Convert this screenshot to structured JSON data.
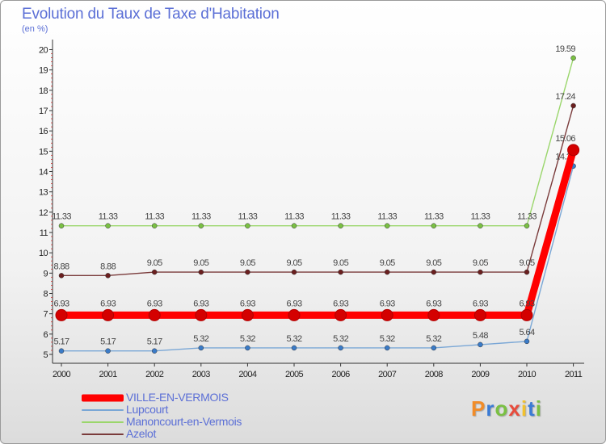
{
  "header": {
    "title": "Evolution du Taux de Taxe d'Habitation",
    "unit": "(en %)"
  },
  "logo": {
    "text": "Proxiti",
    "colors": [
      "#f28c28",
      "#3a7bd5",
      "#7ac043",
      "#e84b3c",
      "#f2c12e",
      "#3a7bd5",
      "#7ac043"
    ]
  },
  "chart_data": {
    "type": "line",
    "title": "Evolution du Taux de Taxe d'Habitation",
    "ylabel": "(en %)",
    "x": [
      "2000",
      "2001",
      "2002",
      "2003",
      "2004",
      "2005",
      "2006",
      "2007",
      "2008",
      "2009",
      "2010",
      "2011"
    ],
    "ylim": [
      5,
      20
    ],
    "yticks": [
      5,
      6,
      7,
      8,
      9,
      10,
      11,
      12,
      13,
      14,
      15,
      16,
      17,
      18,
      19,
      20
    ],
    "grid": false,
    "legend": "bottom-left",
    "series": [
      {
        "name": "Manoncourt-en-Vermois",
        "color": "#9ad66b",
        "point": "#7ac043",
        "values": [
          11.33,
          11.33,
          11.33,
          11.33,
          11.33,
          11.33,
          11.33,
          11.33,
          11.33,
          11.33,
          11.33,
          19.59
        ],
        "labels": [
          "11.33",
          "11.33",
          "11.33",
          "11.33",
          "11.33",
          "11.33",
          "11.33",
          "11.33",
          "11.33",
          "11.33",
          "11.33",
          "19.59"
        ]
      },
      {
        "name": "Azelot",
        "color": "#7a3b3b",
        "point": "#6b1f1f",
        "values": [
          8.88,
          8.88,
          9.05,
          9.05,
          9.05,
          9.05,
          9.05,
          9.05,
          9.05,
          9.05,
          9.05,
          17.24
        ],
        "labels": [
          "8.88",
          "8.88",
          "9.05",
          "9.05",
          "9.05",
          "9.05",
          "9.05",
          "9.05",
          "9.05",
          "9.05",
          "9.05",
          "17.24"
        ]
      },
      {
        "name": "Lupcourt",
        "color": "#7aa7d6",
        "point": "#3a7bc8",
        "values": [
          5.17,
          5.17,
          5.17,
          5.32,
          5.32,
          5.32,
          5.32,
          5.32,
          5.32,
          5.48,
          5.64,
          14.27
        ],
        "labels": [
          "5.17",
          "5.17",
          "5.17",
          "5.32",
          "5.32",
          "5.32",
          "5.32",
          "5.32",
          "5.32",
          "5.48",
          "5.64",
          "14.27"
        ]
      },
      {
        "name": "VILLE-EN-VERMOIS",
        "color": "#ff0000",
        "point": "#d40000",
        "emphasis": true,
        "values": [
          6.93,
          6.93,
          6.93,
          6.93,
          6.93,
          6.93,
          6.93,
          6.93,
          6.93,
          6.93,
          6.93,
          15.06
        ],
        "labels": [
          "6.93",
          "6.93",
          "6.93",
          "6.93",
          "6.93",
          "6.93",
          "6.93",
          "6.93",
          "6.93",
          "6.93",
          "6.93",
          "15.06"
        ]
      }
    ],
    "legend_order": [
      "VILLE-EN-VERMOIS",
      "Lupcourt",
      "Manoncourt-en-Vermois",
      "Azelot"
    ]
  }
}
